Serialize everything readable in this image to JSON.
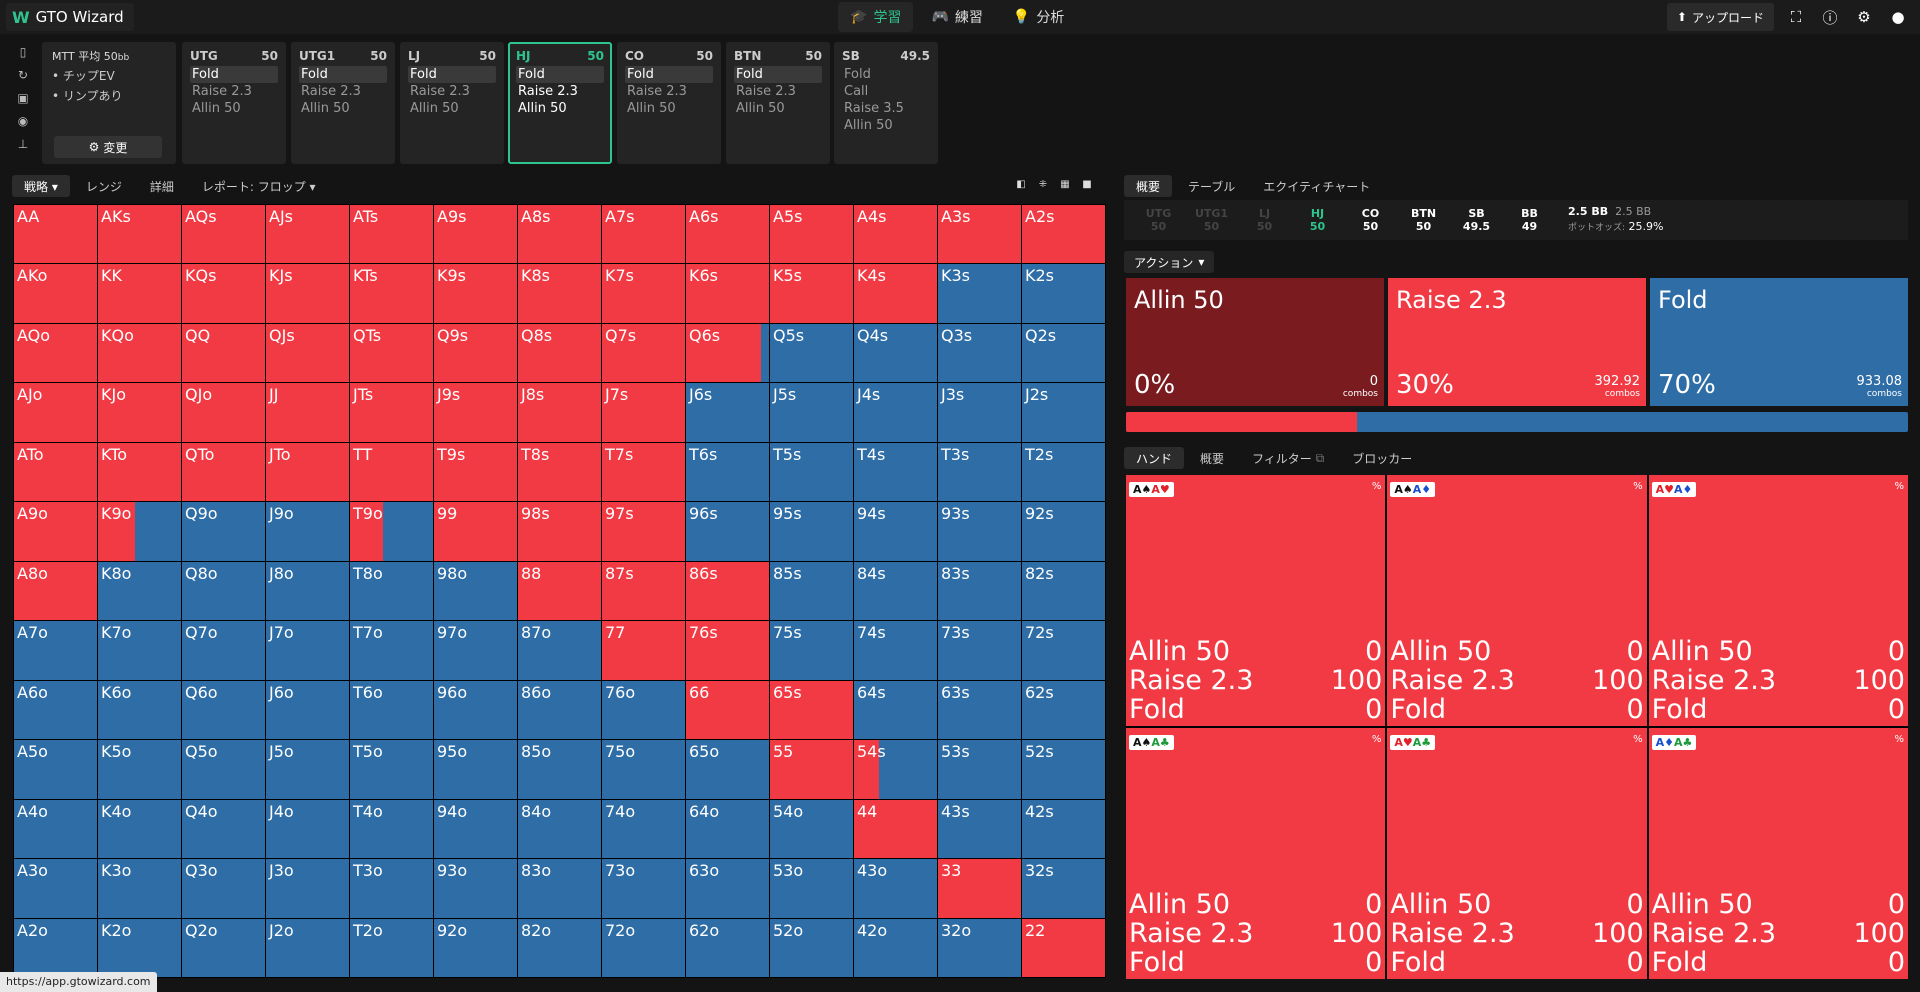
{
  "header": {
    "logo_mark": "W",
    "logo_text": "GTO Wizard",
    "nav": [
      {
        "label": "学習",
        "icon": "graduation-cap-icon",
        "active": true
      },
      {
        "label": "練習",
        "icon": "gamepad-icon",
        "active": false
      },
      {
        "label": "分析",
        "icon": "lightbulb-icon",
        "active": false
      }
    ],
    "upload_label": "アップロード"
  },
  "left_tools": [
    "bookmark-icon",
    "refresh-icon",
    "save-icon",
    "gamepad-icon",
    "align-icon"
  ],
  "mtt": {
    "title": "MTT 平均 50",
    "unit": "bb",
    "items": [
      "• チップEV",
      "• リンプあり"
    ],
    "button_label": "変更"
  },
  "positions": [
    {
      "name": "UTG",
      "stack": "50",
      "actions": [
        "Fold",
        "Raise 2.3",
        "Allin 50"
      ],
      "selected": 0,
      "active": false
    },
    {
      "name": "UTG1",
      "stack": "50",
      "actions": [
        "Fold",
        "Raise 2.3",
        "Allin 50"
      ],
      "selected": 0,
      "active": false
    },
    {
      "name": "LJ",
      "stack": "50",
      "actions": [
        "Fold",
        "Raise 2.3",
        "Allin 50"
      ],
      "selected": 0,
      "active": false
    },
    {
      "name": "HJ",
      "stack": "50",
      "actions": [
        "Fold",
        "Raise 2.3",
        "Allin 50"
      ],
      "selected": 0,
      "active": true
    },
    {
      "name": "CO",
      "stack": "50",
      "actions": [
        "Fold",
        "Raise 2.3",
        "Allin 50"
      ],
      "selected": 0,
      "active": false
    },
    {
      "name": "BTN",
      "stack": "50",
      "actions": [
        "Fold",
        "Raise 2.3",
        "Allin 50"
      ],
      "selected": 0,
      "active": false
    },
    {
      "name": "SB",
      "stack": "49.5",
      "actions": [
        "Fold",
        "Call",
        "Raise 3.5",
        "Allin 50"
      ],
      "selected": -1,
      "active": false
    }
  ],
  "left_tabs": [
    {
      "label": "戦略 ▾",
      "active": true
    },
    {
      "label": "レンジ",
      "active": false
    },
    {
      "label": "詳細",
      "active": false
    },
    {
      "label": "レポート: フロップ ▾",
      "active": false
    }
  ],
  "matrix": {
    "colors": {
      "raise": "#f23a44",
      "fold": "#2e6da6"
    },
    "rows": [
      {
        "cells": [
          "AA",
          "AKs",
          "AQs",
          "AJs",
          "ATs",
          "A9s",
          "A8s",
          "A7s",
          "A6s",
          "A5s",
          "A4s",
          "A3s",
          "A2s"
        ],
        "raise": [
          1,
          1,
          1,
          1,
          1,
          1,
          1,
          1,
          1,
          1,
          1,
          1,
          1
        ]
      },
      {
        "cells": [
          "AKo",
          "KK",
          "KQs",
          "KJs",
          "KTs",
          "K9s",
          "K8s",
          "K7s",
          "K6s",
          "K5s",
          "K4s",
          "K3s",
          "K2s"
        ],
        "raise": [
          1,
          1,
          1,
          1,
          1,
          1,
          1,
          1,
          1,
          1,
          1,
          0,
          0
        ]
      },
      {
        "cells": [
          "AQo",
          "KQo",
          "QQ",
          "QJs",
          "QTs",
          "Q9s",
          "Q8s",
          "Q7s",
          "Q6s",
          "Q5s",
          "Q4s",
          "Q3s",
          "Q2s"
        ],
        "raise": [
          1,
          1,
          1,
          1,
          1,
          1,
          1,
          1,
          0.9,
          0,
          0,
          0,
          0
        ]
      },
      {
        "cells": [
          "AJo",
          "KJo",
          "QJo",
          "JJ",
          "JTs",
          "J9s",
          "J8s",
          "J7s",
          "J6s",
          "J5s",
          "J4s",
          "J3s",
          "J2s"
        ],
        "raise": [
          1,
          1,
          1,
          1,
          1,
          1,
          1,
          1,
          0,
          0,
          0,
          0,
          0
        ]
      },
      {
        "cells": [
          "ATo",
          "KTo",
          "QTo",
          "JTo",
          "TT",
          "T9s",
          "T8s",
          "T7s",
          "T6s",
          "T5s",
          "T4s",
          "T3s",
          "T2s"
        ],
        "raise": [
          1,
          1,
          1,
          1,
          1,
          1,
          1,
          1,
          0,
          0,
          0,
          0,
          0
        ]
      },
      {
        "cells": [
          "A9o",
          "K9o",
          "Q9o",
          "J9o",
          "T9o",
          "99",
          "98s",
          "97s",
          "96s",
          "95s",
          "94s",
          "93s",
          "92s"
        ],
        "raise": [
          1,
          0.45,
          0,
          0,
          0.4,
          1,
          1,
          1,
          0,
          0,
          0,
          0,
          0
        ]
      },
      {
        "cells": [
          "A8o",
          "K8o",
          "Q8o",
          "J8o",
          "T8o",
          "98o",
          "88",
          "87s",
          "86s",
          "85s",
          "84s",
          "83s",
          "82s"
        ],
        "raise": [
          1,
          0,
          0,
          0,
          0,
          0,
          1,
          1,
          1,
          0,
          0,
          0,
          0
        ]
      },
      {
        "cells": [
          "A7o",
          "K7o",
          "Q7o",
          "J7o",
          "T7o",
          "97o",
          "87o",
          "77",
          "76s",
          "75s",
          "74s",
          "73s",
          "72s"
        ],
        "raise": [
          0,
          0,
          0,
          0,
          0,
          0,
          0,
          1,
          1,
          0,
          0,
          0,
          0
        ]
      },
      {
        "cells": [
          "A6o",
          "K6o",
          "Q6o",
          "J6o",
          "T6o",
          "96o",
          "86o",
          "76o",
          "66",
          "65s",
          "64s",
          "63s",
          "62s"
        ],
        "raise": [
          0,
          0,
          0,
          0,
          0,
          0,
          0,
          0,
          1,
          1,
          0,
          0,
          0
        ]
      },
      {
        "cells": [
          "A5o",
          "K5o",
          "Q5o",
          "J5o",
          "T5o",
          "95o",
          "85o",
          "75o",
          "65o",
          "55",
          "54s",
          "53s",
          "52s"
        ],
        "raise": [
          0,
          0,
          0,
          0,
          0,
          0,
          0,
          0,
          0,
          1,
          0.3,
          0,
          0
        ]
      },
      {
        "cells": [
          "A4o",
          "K4o",
          "Q4o",
          "J4o",
          "T4o",
          "94o",
          "84o",
          "74o",
          "64o",
          "54o",
          "44",
          "43s",
          "42s"
        ],
        "raise": [
          0,
          0,
          0,
          0,
          0,
          0,
          0,
          0,
          0,
          0,
          1,
          0,
          0
        ]
      },
      {
        "cells": [
          "A3o",
          "K3o",
          "Q3o",
          "J3o",
          "T3o",
          "93o",
          "83o",
          "73o",
          "63o",
          "53o",
          "43o",
          "33",
          "32s"
        ],
        "raise": [
          0,
          0,
          0,
          0,
          0,
          0,
          0,
          0,
          0,
          0,
          0,
          1,
          0
        ]
      },
      {
        "cells": [
          "A2o",
          "K2o",
          "Q2o",
          "J2o",
          "T2o",
          "92o",
          "82o",
          "72o",
          "62o",
          "52o",
          "42o",
          "32o",
          "22"
        ],
        "raise": [
          0,
          0,
          0,
          0,
          0,
          0,
          0,
          0,
          0,
          0,
          0,
          0,
          1
        ]
      }
    ]
  },
  "url_hint": "https://app.gtowizard.com",
  "right_tabs": [
    {
      "label": "概要",
      "active": true
    },
    {
      "label": "テーブル",
      "active": false
    },
    {
      "label": "エクイティチャート",
      "active": false
    }
  ],
  "infobar": {
    "seats": [
      {
        "name": "UTG",
        "stack": "50",
        "state": "dim"
      },
      {
        "name": "UTG1",
        "stack": "50",
        "state": "dim"
      },
      {
        "name": "LJ",
        "stack": "50",
        "state": "dim"
      },
      {
        "name": "HJ",
        "stack": "50",
        "state": "cur"
      },
      {
        "name": "CO",
        "stack": "50",
        "state": "normal"
      },
      {
        "name": "BTN",
        "stack": "50",
        "state": "normal"
      },
      {
        "name": "SB",
        "stack": "49.5",
        "state": "normal"
      },
      {
        "name": "BB",
        "stack": "49",
        "state": "normal"
      }
    ],
    "pot_main": "2.5 BB",
    "pot_sub": "2.5 BB",
    "pot_odds_label": "ポットオッズ:",
    "pot_odds_value": "25.9%"
  },
  "action_dropdown": "アクション",
  "actions": [
    {
      "name": "Allin 50",
      "pct": "0%",
      "combos": "0",
      "combos_label": "combos",
      "color": "#7a1b20"
    },
    {
      "name": "Raise 2.3",
      "pct": "30%",
      "combos": "392.92",
      "combos_label": "combos",
      "color": "#f23a44"
    },
    {
      "name": "Fold",
      "pct": "70%",
      "combos": "933.08",
      "combos_label": "combos",
      "color": "#2e6da6"
    }
  ],
  "progress": {
    "raise_fraction": 0.296
  },
  "hand_tabs": [
    {
      "label": "ハンド",
      "active": true
    },
    {
      "label": "概要",
      "active": false
    },
    {
      "label": "フィルター",
      "active": false
    },
    {
      "label": "ブロッカー",
      "active": false
    }
  ],
  "hand_cards": [
    {
      "c1": "A♠",
      "c1c": "",
      "c2": "A♥",
      "c2c": "red",
      "rows": [
        [
          "Allin 50",
          "0"
        ],
        [
          "Raise 2.3",
          "100"
        ],
        [
          "Fold",
          "0"
        ]
      ]
    },
    {
      "c1": "A♠",
      "c1c": "",
      "c2": "A♦",
      "c2c": "blue",
      "rows": [
        [
          "Allin 50",
          "0"
        ],
        [
          "Raise 2.3",
          "100"
        ],
        [
          "Fold",
          "0"
        ]
      ]
    },
    {
      "c1": "A♥",
      "c1c": "red",
      "c2": "A♦",
      "c2c": "blue",
      "rows": [
        [
          "Allin 50",
          "0"
        ],
        [
          "Raise 2.3",
          "100"
        ],
        [
          "Fold",
          "0"
        ]
      ]
    },
    {
      "c1": "A♠",
      "c1c": "",
      "c2": "A♣",
      "c2c": "green",
      "rows": [
        [
          "Allin 50",
          "0"
        ],
        [
          "Raise 2.3",
          "100"
        ],
        [
          "Fold",
          "0"
        ]
      ]
    },
    {
      "c1": "A♥",
      "c1c": "red",
      "c2": "A♣",
      "c2c": "green",
      "rows": [
        [
          "Allin 50",
          "0"
        ],
        [
          "Raise 2.3",
          "100"
        ],
        [
          "Fold",
          "0"
        ]
      ]
    },
    {
      "c1": "A♦",
      "c1c": "blue",
      "c2": "A♣",
      "c2c": "green",
      "rows": [
        [
          "Allin 50",
          "0"
        ],
        [
          "Raise 2.3",
          "100"
        ],
        [
          "Fold",
          "0"
        ]
      ]
    }
  ],
  "percent_sign": "%"
}
